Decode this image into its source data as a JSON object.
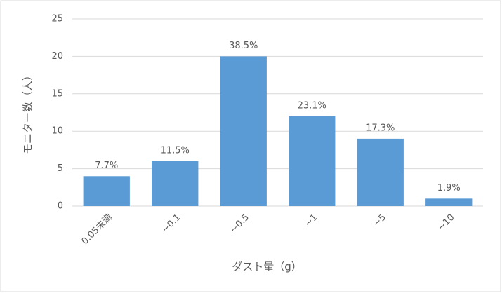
{
  "chart_data": {
    "type": "bar",
    "categories": [
      "0.05未満",
      "~0.1",
      "~0.5",
      "~1",
      "~5",
      "~10"
    ],
    "values": [
      4,
      6,
      20,
      12,
      9,
      1
    ],
    "annotations": [
      "7.7%",
      "11.5%",
      "38.5%",
      "23.1%",
      "17.3%",
      "1.9%"
    ],
    "color": "#5b9bd5",
    "ylim": [
      0,
      25
    ],
    "yticks": [
      0,
      5,
      10,
      15,
      20,
      25
    ],
    "grid": true,
    "x_label": "ダスト量（g）",
    "y_label": "モニター数（人）"
  }
}
